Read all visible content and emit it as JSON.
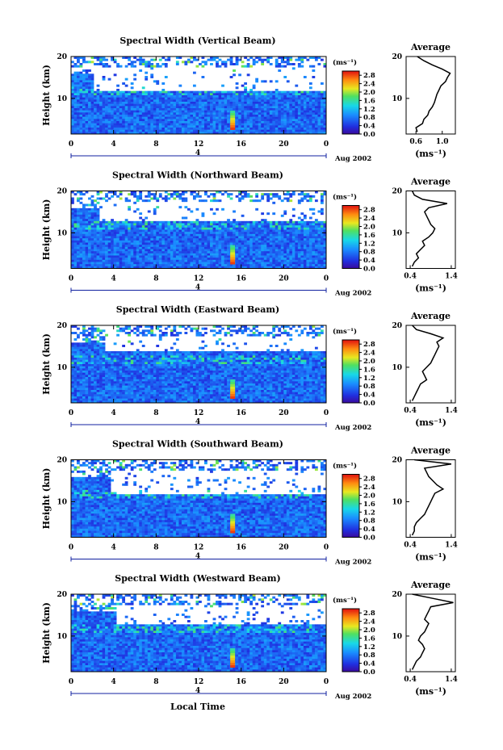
{
  "xlabel": "Local Time",
  "chart_data": [
    {
      "type": "heatmap",
      "title": "Spectral Width (Vertical Beam)",
      "ylabel": "Height (km)",
      "x_ticks": [
        "0",
        "4",
        "8",
        "12",
        "16",
        "20",
        "0"
      ],
      "y_ticks": [
        "20",
        "10"
      ],
      "xlim": [
        0,
        24
      ],
      "ylim": [
        1.5,
        20
      ],
      "date_axis": {
        "tick": "4",
        "label": "Aug 2002"
      },
      "colorbar": {
        "unit": "(ms⁻¹)",
        "ticks": [
          "2.8",
          "2.4",
          "2.0",
          "1.6",
          "1.2",
          "0.8",
          "0.4",
          "0.0"
        ],
        "range": [
          0,
          3.0
        ]
      },
      "profile": {
        "title": "Average",
        "y_ticks": [
          "20",
          "10"
        ],
        "x_ticks": [
          "0.6",
          "1.0"
        ],
        "xlabel": "(ms⁻¹)",
        "xlim": [
          0.45,
          1.2
        ],
        "heights": [
          2,
          3,
          4,
          5,
          6,
          7,
          8,
          9,
          10,
          11,
          12,
          13,
          14,
          15,
          16,
          17,
          18,
          19,
          20
        ],
        "values": [
          0.62,
          0.6,
          0.7,
          0.72,
          0.78,
          0.8,
          0.85,
          0.88,
          0.9,
          0.92,
          0.95,
          0.98,
          1.05,
          1.08,
          1.12,
          1.0,
          0.85,
          0.72,
          0.62
        ]
      }
    },
    {
      "type": "heatmap",
      "title": "Spectral Width (Northward Beam)",
      "ylabel": "Height (km)",
      "x_ticks": [
        "0",
        "4",
        "8",
        "12",
        "16",
        "20",
        "0"
      ],
      "y_ticks": [
        "20",
        "10"
      ],
      "xlim": [
        0,
        24
      ],
      "ylim": [
        1.5,
        20
      ],
      "date_axis": {
        "tick": "4",
        "label": "Aug 2002"
      },
      "colorbar": {
        "unit": "(ms⁻¹)",
        "ticks": [
          "2.8",
          "2.4",
          "2.0",
          "1.6",
          "1.2",
          "0.8",
          "0.4",
          "0.0"
        ],
        "range": [
          0,
          3.0
        ]
      },
      "profile": {
        "title": "Average",
        "y_ticks": [
          "20",
          "10"
        ],
        "x_ticks": [
          "0.4",
          "1.4"
        ],
        "xlabel": "(ms⁻¹)",
        "xlim": [
          0.3,
          1.5
        ],
        "heights": [
          2,
          3,
          4,
          5,
          6,
          7,
          8,
          9,
          10,
          11,
          12,
          13,
          14,
          15,
          16,
          17,
          18,
          19,
          20
        ],
        "values": [
          0.45,
          0.5,
          0.6,
          0.55,
          0.65,
          0.75,
          0.7,
          0.85,
          0.95,
          1.0,
          0.9,
          0.85,
          0.8,
          0.75,
          0.85,
          1.3,
          0.7,
          0.5,
          0.45
        ]
      }
    },
    {
      "type": "heatmap",
      "title": "Spectral Width (Eastward Beam)",
      "ylabel": "Height (km)",
      "x_ticks": [
        "0",
        "4",
        "8",
        "12",
        "16",
        "20",
        "0"
      ],
      "y_ticks": [
        "20",
        "10"
      ],
      "xlim": [
        0,
        24
      ],
      "ylim": [
        1.5,
        20
      ],
      "date_axis": {
        "tick": "4",
        "label": "Aug 2002"
      },
      "colorbar": {
        "unit": "(ms⁻¹)",
        "ticks": [
          "2.8",
          "2.4",
          "2.0",
          "1.6",
          "1.2",
          "0.8",
          "0.4",
          "0.0"
        ],
        "range": [
          0,
          3.0
        ]
      },
      "profile": {
        "title": "Average",
        "y_ticks": [
          "20",
          "10"
        ],
        "x_ticks": [
          "0.4",
          "1.4"
        ],
        "xlabel": "(ms⁻¹)",
        "xlim": [
          0.3,
          1.5
        ],
        "heights": [
          2,
          3,
          4,
          5,
          6,
          7,
          8,
          9,
          10,
          11,
          12,
          13,
          14,
          15,
          16,
          17,
          18,
          19,
          20
        ],
        "values": [
          0.45,
          0.5,
          0.55,
          0.6,
          0.65,
          0.8,
          0.75,
          0.7,
          0.8,
          0.9,
          0.95,
          1.0,
          1.05,
          1.1,
          1.05,
          1.2,
          0.9,
          0.55,
          0.45
        ]
      }
    },
    {
      "type": "heatmap",
      "title": "Spectral Width (Southward Beam)",
      "ylabel": "Height (km)",
      "x_ticks": [
        "0",
        "4",
        "8",
        "12",
        "16",
        "20",
        "0"
      ],
      "y_ticks": [
        "20",
        "10"
      ],
      "xlim": [
        0,
        24
      ],
      "ylim": [
        1.5,
        20
      ],
      "date_axis": {
        "tick": "4",
        "label": "Aug 2002"
      },
      "colorbar": {
        "unit": "(ms⁻¹)",
        "ticks": [
          "2.8",
          "2.4",
          "2.0",
          "1.6",
          "1.2",
          "0.8",
          "0.4",
          "0.0"
        ],
        "range": [
          0,
          3.0
        ]
      },
      "profile": {
        "title": "Average",
        "y_ticks": [
          "20",
          "10"
        ],
        "x_ticks": [
          "0.4",
          "1.4"
        ],
        "xlabel": "(ms⁻¹)",
        "xlim": [
          0.3,
          1.5
        ],
        "heights": [
          2,
          3,
          4,
          5,
          6,
          7,
          8,
          9,
          10,
          11,
          12,
          13,
          14,
          15,
          16,
          17,
          18,
          19,
          20
        ],
        "values": [
          0.45,
          0.5,
          0.5,
          0.55,
          0.65,
          0.75,
          0.8,
          0.85,
          0.9,
          0.95,
          1.0,
          1.2,
          1.05,
          0.95,
          0.85,
          0.8,
          0.75,
          1.4,
          0.5
        ]
      }
    },
    {
      "type": "heatmap",
      "title": "Spectral Width (Westward Beam)",
      "ylabel": "Height (km)",
      "x_ticks": [
        "0",
        "4",
        "8",
        "12",
        "16",
        "20",
        "0"
      ],
      "y_ticks": [
        "20",
        "10"
      ],
      "xlim": [
        0,
        24
      ],
      "ylim": [
        1.5,
        20
      ],
      "date_axis": {
        "tick": "4",
        "label": "Aug 2002"
      },
      "colorbar": {
        "unit": "(ms⁻¹)",
        "ticks": [
          "2.8",
          "2.4",
          "2.0",
          "1.6",
          "1.2",
          "0.8",
          "0.4",
          "0.0"
        ],
        "range": [
          0,
          3.0
        ]
      },
      "profile": {
        "title": "Average",
        "y_ticks": [
          "20",
          "10"
        ],
        "x_ticks": [
          "0.4",
          "1.4"
        ],
        "xlabel": "(ms⁻¹)",
        "xlim": [
          0.3,
          1.5
        ],
        "heights": [
          2,
          3,
          4,
          5,
          6,
          7,
          8,
          9,
          10,
          11,
          12,
          13,
          14,
          15,
          16,
          17,
          18,
          19,
          20
        ],
        "values": [
          0.45,
          0.5,
          0.55,
          0.65,
          0.7,
          0.75,
          0.7,
          0.6,
          0.65,
          0.75,
          0.8,
          0.85,
          0.75,
          0.8,
          0.85,
          0.9,
          1.45,
          0.95,
          0.45
        ]
      }
    }
  ]
}
